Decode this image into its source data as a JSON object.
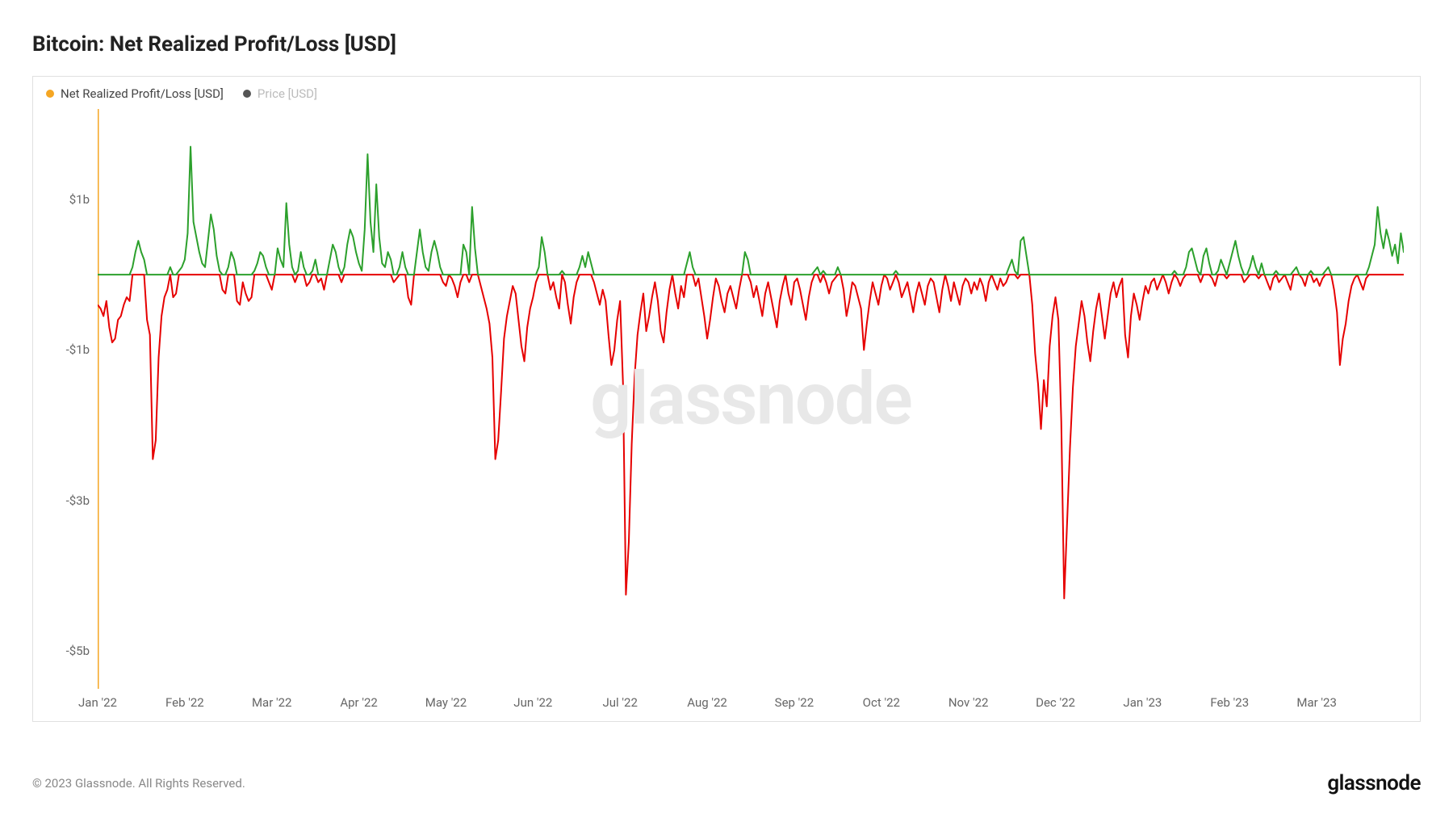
{
  "title": "Bitcoin: Net Realized Profit/Loss [USD]",
  "legend": {
    "series1": {
      "label": "Net Realized Profit/Loss [USD]",
      "dot_color": "#f5a623"
    },
    "series2": {
      "label": "Price [USD]",
      "dot_color": "#555555",
      "label_color": "#bbbbbb"
    }
  },
  "watermark": "glassnode",
  "copyright": "© 2023 Glassnode. All Rights Reserved.",
  "brand": "glassnode",
  "chart": {
    "type": "line-pos-neg",
    "background_color": "#ffffff",
    "border_color": "#e0e0e0",
    "orange_axis_color": "#f5a623",
    "zero_line_color": "#333333",
    "positive_color": "#2ca02c",
    "negative_color": "#e60000",
    "line_width": 2,
    "y": {
      "min": -5.5,
      "max": 2.2,
      "ticks": [
        {
          "v": 1,
          "label": "$1b"
        },
        {
          "v": -1,
          "label": "-$1b"
        },
        {
          "v": -3,
          "label": "-$3b"
        },
        {
          "v": -5,
          "label": "-$5b"
        }
      ]
    },
    "x": {
      "labels": [
        "Jan '22",
        "Feb '22",
        "Mar '22",
        "Apr '22",
        "May '22",
        "Jun '22",
        "Jul '22",
        "Aug '22",
        "Sep '22",
        "Oct '22",
        "Nov '22",
        "Dec '22",
        "Jan '23",
        "Feb '23",
        "Mar '23"
      ],
      "max_index": 450
    },
    "values": [
      -0.4,
      -0.45,
      -0.55,
      -0.35,
      -0.7,
      -0.9,
      -0.85,
      -0.6,
      -0.55,
      -0.4,
      -0.3,
      -0.35,
      0.1,
      0.3,
      0.45,
      0.3,
      0.2,
      -0.6,
      -0.8,
      -2.45,
      -2.2,
      -1.1,
      -0.55,
      -0.3,
      -0.2,
      0.1,
      -0.3,
      -0.25,
      0.05,
      0.1,
      0.2,
      0.55,
      1.7,
      0.7,
      0.5,
      0.3,
      0.15,
      0.1,
      0.45,
      0.8,
      0.6,
      0.25,
      0.05,
      -0.2,
      -0.25,
      0.1,
      0.3,
      0.2,
      -0.35,
      -0.4,
      -0.1,
      -0.25,
      -0.35,
      -0.3,
      0.05,
      0.15,
      0.3,
      0.25,
      0.1,
      -0.1,
      -0.2,
      0.0,
      0.35,
      0.2,
      0.1,
      0.95,
      0.4,
      0.1,
      -0.1,
      0.05,
      0.3,
      0.1,
      -0.15,
      -0.1,
      0.05,
      0.2,
      -0.1,
      -0.05,
      -0.2,
      0.0,
      0.2,
      0.4,
      0.3,
      0.1,
      -0.1,
      0.1,
      0.4,
      0.6,
      0.5,
      0.3,
      0.15,
      0.05,
      0.6,
      1.6,
      0.7,
      0.3,
      1.2,
      0.5,
      0.15,
      0.1,
      0.3,
      0.2,
      -0.1,
      -0.05,
      0.1,
      0.3,
      0.1,
      -0.3,
      -0.4,
      0.0,
      0.3,
      0.6,
      0.3,
      0.1,
      0.05,
      0.3,
      0.45,
      0.3,
      0.1,
      -0.1,
      -0.15,
      0.0,
      -0.05,
      -0.15,
      -0.3,
      -0.1,
      0.4,
      0.3,
      -0.1,
      0.9,
      0.35,
      0.0,
      -0.15,
      -0.3,
      -0.45,
      -0.65,
      -1.1,
      -2.45,
      -2.2,
      -1.55,
      -0.85,
      -0.55,
      -0.35,
      -0.15,
      -0.25,
      -0.6,
      -0.95,
      -1.15,
      -0.7,
      -0.45,
      -0.3,
      -0.1,
      0.1,
      0.5,
      0.3,
      0.0,
      -0.2,
      -0.1,
      -0.3,
      -0.45,
      0.05,
      -0.1,
      -0.4,
      -0.65,
      -0.3,
      -0.1,
      0.1,
      0.25,
      0.1,
      0.3,
      0.15,
      -0.1,
      -0.25,
      -0.4,
      -0.2,
      -0.35,
      -0.8,
      -1.2,
      -1.0,
      -0.6,
      -0.35,
      -1.45,
      -4.25,
      -3.55,
      -2.25,
      -1.35,
      -0.8,
      -0.5,
      -0.25,
      -0.75,
      -0.55,
      -0.3,
      -0.1,
      -0.35,
      -0.75,
      -0.9,
      -0.5,
      -0.2,
      0.0,
      -0.25,
      -0.45,
      -0.15,
      -0.3,
      0.15,
      0.3,
      0.1,
      -0.15,
      -0.05,
      -0.3,
      -0.55,
      -0.85,
      -0.6,
      -0.3,
      -0.05,
      -0.15,
      -0.35,
      -0.5,
      -0.25,
      -0.15,
      -0.3,
      -0.45,
      -0.2,
      0.0,
      0.3,
      0.2,
      -0.1,
      -0.3,
      -0.15,
      -0.35,
      -0.55,
      -0.25,
      -0.1,
      -0.3,
      -0.5,
      -0.7,
      -0.35,
      -0.15,
      0.0,
      -0.25,
      -0.4,
      -0.1,
      -0.05,
      -0.2,
      -0.4,
      -0.6,
      -0.3,
      -0.1,
      0.05,
      0.1,
      -0.1,
      0.05,
      -0.1,
      -0.25,
      -0.1,
      -0.05,
      0.1,
      0.0,
      -0.2,
      -0.55,
      -0.35,
      -0.1,
      -0.15,
      -0.3,
      -0.45,
      -1.0,
      -0.65,
      -0.35,
      -0.1,
      -0.25,
      -0.4,
      -0.15,
      0.0,
      -0.05,
      -0.2,
      -0.1,
      0.05,
      -0.1,
      -0.3,
      -0.2,
      -0.1,
      -0.3,
      -0.5,
      -0.25,
      -0.1,
      -0.25,
      -0.4,
      -0.15,
      -0.05,
      -0.1,
      -0.3,
      -0.5,
      -0.2,
      0.0,
      -0.15,
      -0.35,
      -0.1,
      -0.25,
      -0.4,
      -0.15,
      -0.05,
      -0.1,
      -0.25,
      -0.1,
      -0.2,
      -0.05,
      -0.15,
      -0.35,
      -0.1,
      0.0,
      -0.1,
      -0.2,
      -0.05,
      -0.15,
      -0.1,
      0.1,
      0.2,
      0.05,
      -0.05,
      0.45,
      0.5,
      0.25,
      0.0,
      -0.4,
      -1.05,
      -1.45,
      -2.05,
      -1.4,
      -1.75,
      -0.95,
      -0.55,
      -0.3,
      -0.6,
      -1.95,
      -4.3,
      -3.3,
      -2.3,
      -1.5,
      -0.95,
      -0.65,
      -0.35,
      -0.55,
      -0.9,
      -1.15,
      -0.75,
      -0.45,
      -0.25,
      -0.55,
      -0.85,
      -0.55,
      -0.25,
      -0.1,
      -0.3,
      -0.15,
      -0.05,
      -0.8,
      -1.1,
      -0.55,
      -0.25,
      -0.4,
      -0.6,
      -0.35,
      -0.15,
      -0.25,
      -0.1,
      -0.05,
      -0.2,
      -0.1,
      0.0,
      -0.1,
      -0.25,
      -0.1,
      0.05,
      -0.05,
      -0.15,
      -0.05,
      0.1,
      0.3,
      0.35,
      0.2,
      0.05,
      -0.1,
      0.25,
      0.35,
      0.15,
      -0.05,
      -0.15,
      0.05,
      0.2,
      0.1,
      -0.05,
      0.15,
      0.3,
      0.45,
      0.25,
      0.1,
      -0.1,
      -0.05,
      0.1,
      0.25,
      0.1,
      -0.05,
      0.15,
      0.0,
      -0.1,
      -0.2,
      -0.05,
      0.05,
      -0.1,
      -0.05,
      0.0,
      -0.1,
      -0.2,
      0.05,
      0.1,
      0.0,
      -0.05,
      -0.15,
      0.0,
      0.05,
      -0.1,
      -0.05,
      -0.15,
      -0.05,
      0.05,
      0.1,
      0.0,
      -0.2,
      -0.5,
      -1.2,
      -0.85,
      -0.65,
      -0.35,
      -0.15,
      -0.05,
      0.0,
      -0.1,
      -0.2,
      -0.05,
      0.1,
      0.25,
      0.4,
      0.9,
      0.55,
      0.35,
      0.6,
      0.45,
      0.25,
      0.4,
      0.15,
      0.55,
      0.3,
      0.45,
      0.25,
      0.35,
      0.5,
      0.65,
      0.4,
      0.3,
      0.45,
      0.25
    ]
  }
}
